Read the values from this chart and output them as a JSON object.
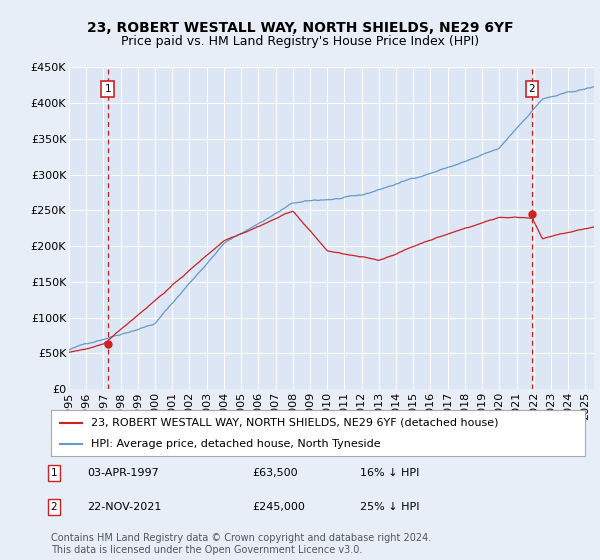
{
  "title": "23, ROBERT WESTALL WAY, NORTH SHIELDS, NE29 6YF",
  "subtitle": "Price paid vs. HM Land Registry's House Price Index (HPI)",
  "background_color": "#e8eef8",
  "plot_bg_color": "#dce6f5",
  "grid_color": "#ffffff",
  "hpi_color": "#6699cc",
  "price_color": "#cc2222",
  "dashed_color": "#cc2222",
  "point1_x": 1997.25,
  "point1_y": 63500,
  "point2_x": 2021.9,
  "point2_y": 245000,
  "ylim": [
    0,
    450000
  ],
  "yticks": [
    0,
    50000,
    100000,
    150000,
    200000,
    250000,
    300000,
    350000,
    400000,
    450000
  ],
  "ytick_labels": [
    "£0",
    "£50K",
    "£100K",
    "£150K",
    "£200K",
    "£250K",
    "£300K",
    "£350K",
    "£400K",
    "£450K"
  ],
  "xmin": 1995,
  "xmax": 2025.5,
  "title_fontsize": 10,
  "subtitle_fontsize": 9,
  "tick_fontsize": 8,
  "legend_fontsize": 8,
  "annot_fontsize": 8,
  "footer_fontsize": 7,
  "legend_line1": "23, ROBERT WESTALL WAY, NORTH SHIELDS, NE29 6YF (detached house)",
  "legend_line2": "HPI: Average price, detached house, North Tyneside",
  "footer": "Contains HM Land Registry data © Crown copyright and database right 2024.\nThis data is licensed under the Open Government Licence v3.0."
}
